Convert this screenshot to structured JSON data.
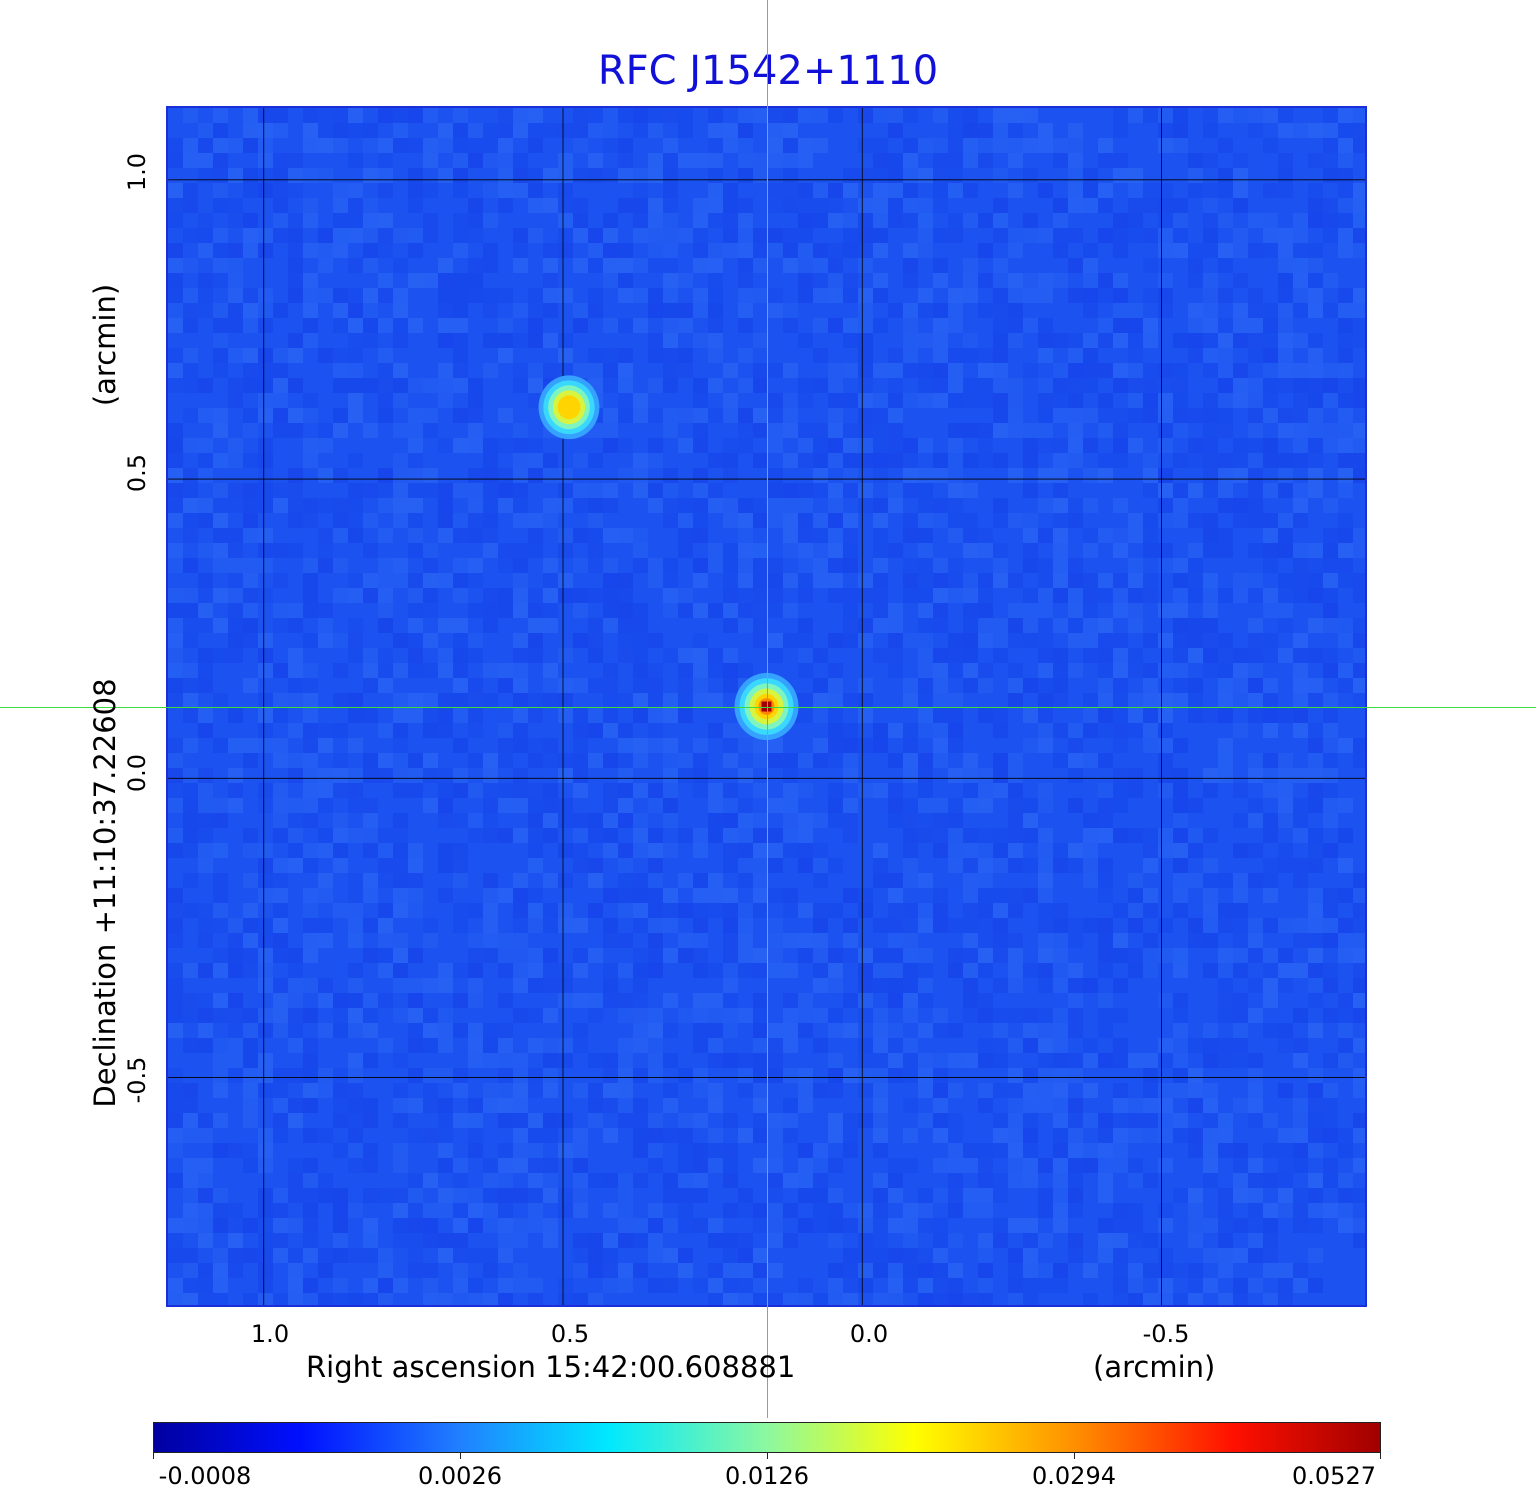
{
  "title": "RFC J1542+1110",
  "map": {
    "x_axis": {
      "label": "Right ascension  15:42:00.608881",
      "unit": "(arcmin)",
      "ticks": [
        "1.0",
        "0.5",
        "0.0",
        "-0.5"
      ],
      "tick_values": [
        1.0,
        0.5,
        0.0,
        -0.5
      ],
      "range": [
        1.16,
        -0.84
      ]
    },
    "y_axis": {
      "label": "Declination  +11:10:37.22608",
      "unit": "(arcmin)",
      "ticks": [
        "1.0",
        "0.5",
        "0.0",
        "-0.5"
      ],
      "tick_values": [
        1.0,
        0.5,
        0.0,
        -0.5
      ],
      "range": [
        -0.88,
        1.12
      ]
    },
    "grid": true,
    "crosshair": {
      "x": 0.16,
      "y": 0.12,
      "color": "#3ddc3d"
    },
    "sources": [
      {
        "x": 0.16,
        "y": 0.12,
        "peak": 0.0527
      },
      {
        "x": 0.49,
        "y": 0.62,
        "peak": 0.025
      }
    ],
    "background_color": "#1c52f0"
  },
  "colorbar": {
    "colormap": "jet",
    "ticks": [
      "-0.0008",
      "0.0026",
      "0.0126",
      "0.0294",
      "0.0527"
    ]
  }
}
